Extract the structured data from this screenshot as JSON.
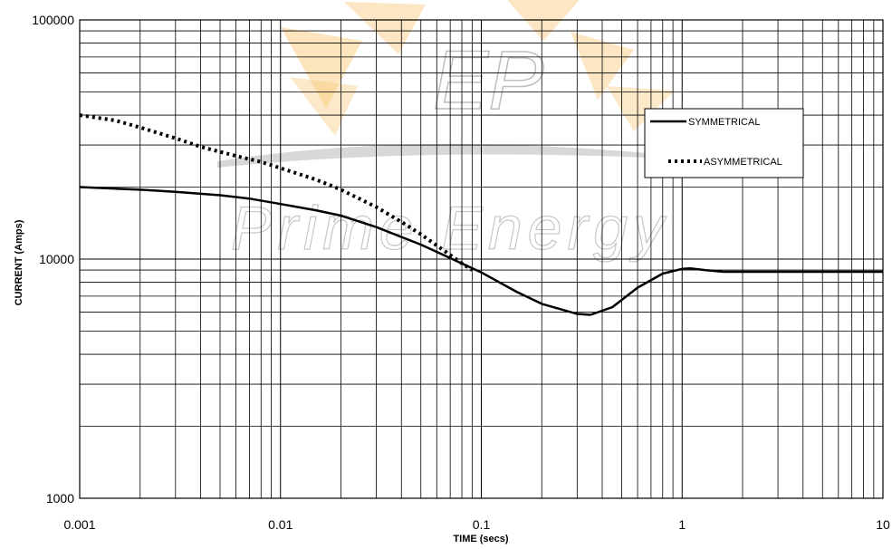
{
  "chart_data": {
    "type": "line",
    "title": "",
    "xlabel": "TIME (secs)",
    "ylabel": "CURRENT (Amps)",
    "x_scale": "log",
    "y_scale": "log",
    "xlim": [
      0.001,
      10
    ],
    "ylim": [
      1000,
      100000
    ],
    "x_tick_labels": [
      "0.001",
      "0.01",
      "0.1",
      "1",
      "10"
    ],
    "y_tick_labels": [
      "1000",
      "10000",
      "100000"
    ],
    "grid": true,
    "legend_position": "top-right",
    "series": [
      {
        "name": "SYMMETRICAL",
        "style": "solid",
        "color": "#000000",
        "x": [
          0.001,
          0.002,
          0.003,
          0.005,
          0.007,
          0.01,
          0.015,
          0.02,
          0.03,
          0.05,
          0.07,
          0.1,
          0.15,
          0.2,
          0.3,
          0.35,
          0.45,
          0.6,
          0.8,
          1.0,
          1.1,
          1.3,
          1.6,
          2,
          3,
          5,
          10
        ],
        "y": [
          20000,
          19500,
          19100,
          18500,
          17900,
          17000,
          16000,
          15200,
          13600,
          11500,
          10100,
          8800,
          7300,
          6500,
          5900,
          5850,
          6300,
          7600,
          8700,
          9100,
          9150,
          9000,
          8850,
          8850,
          8850,
          8850,
          8850
        ]
      },
      {
        "name": "ASYMMETRICAL",
        "style": "dotted",
        "color": "#000000",
        "x": [
          0.001,
          0.0015,
          0.002,
          0.003,
          0.004,
          0.006,
          0.008,
          0.01,
          0.015,
          0.02,
          0.03,
          0.04,
          0.05,
          0.06,
          0.07,
          0.08,
          0.09
        ],
        "y": [
          40000,
          38000,
          35500,
          32000,
          29500,
          27000,
          25500,
          24000,
          21500,
          19500,
          16500,
          14300,
          12700,
          11400,
          10400,
          9600,
          9000
        ]
      }
    ]
  },
  "watermark": {
    "monogram": "EP",
    "text": "Prime Energy",
    "colors": {
      "orange": "#f5a623",
      "gray": "#c8c8c8"
    }
  }
}
